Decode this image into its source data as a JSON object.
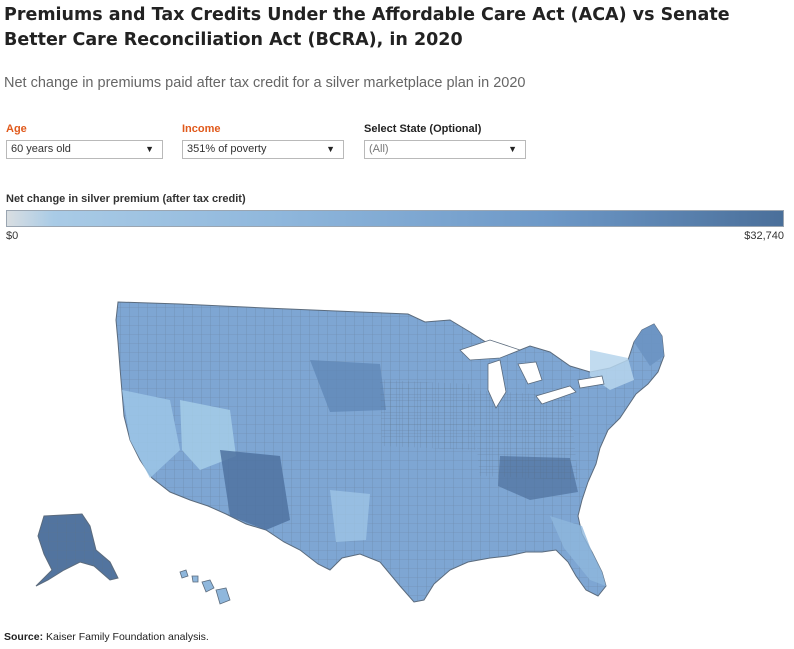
{
  "title": "Premiums and Tax Credits Under the Affordable Care Act (ACA) vs Senate Better Care Reconciliation Act (BCRA), in 2020",
  "subtitle": "Net change in premiums paid after tax credit for a silver marketplace plan in 2020",
  "filters": {
    "age": {
      "label": "Age",
      "value": "60 years old"
    },
    "income": {
      "label": "Income",
      "value": "351% of poverty"
    },
    "state": {
      "label": "Select State (Optional)",
      "value": "(All)"
    }
  },
  "legend": {
    "title": "Net change in silver premium (after tax credit)",
    "min_label": "$0",
    "max_label": "$32,740"
  },
  "source": {
    "label": "Source:",
    "text": "Kaiser Family Foundation analysis."
  },
  "colors": {
    "low": "#d9dee2",
    "mid": "#8fb7dc",
    "high": "#4a6f9a",
    "border": "#6b7785"
  }
}
